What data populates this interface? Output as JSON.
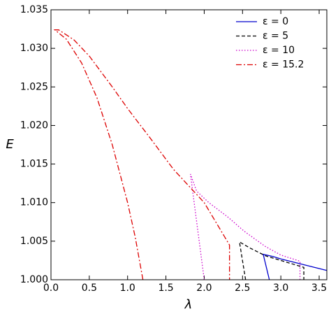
{
  "chart_data": {
    "type": "line",
    "x_label": "λ",
    "y_label": "E",
    "xlim": [
      0,
      3.6
    ],
    "ylim": [
      1.0,
      1.035
    ],
    "xticks": [
      {
        "value": 0,
        "label": "0.0"
      },
      {
        "value": 0.5,
        "label": "0.5"
      },
      {
        "value": 1,
        "label": "1.0"
      },
      {
        "value": 1.5,
        "label": "1.5"
      },
      {
        "value": 2,
        "label": "2.0"
      },
      {
        "value": 2.5,
        "label": "2.5"
      },
      {
        "value": 3,
        "label": "3.0"
      },
      {
        "value": 3.5,
        "label": "3.5"
      }
    ],
    "yticks": [
      {
        "value": 1.0,
        "label": "1.000"
      },
      {
        "value": 1.005,
        "label": "1.005"
      },
      {
        "value": 1.01,
        "label": "1.010"
      },
      {
        "value": 1.015,
        "label": "1.015"
      },
      {
        "value": 1.02,
        "label": "1.020"
      },
      {
        "value": 1.025,
        "label": "1.025"
      },
      {
        "value": 1.03,
        "label": "1.030"
      },
      {
        "value": 1.035,
        "label": "1.035"
      }
    ],
    "legend_position": "upper right",
    "series": [
      {
        "name": "ε = 0",
        "color": "#0000cc",
        "dash": "solid",
        "x": [
          2.85,
          2.77,
          2.9,
          3.0,
          3.2,
          3.4,
          3.6
        ],
        "values": [
          1.0,
          1.0033,
          1.003,
          1.0027,
          1.0022,
          1.0017,
          1.0012
        ]
      },
      {
        "name": "ε = 5",
        "color": "#000000",
        "dash": "dashed",
        "x": [
          2.54,
          2.46,
          2.6,
          2.8,
          3.0,
          3.3,
          3.3
        ],
        "values": [
          1.0,
          1.0049,
          1.0041,
          1.0031,
          1.0025,
          1.0016,
          1.0
        ]
      },
      {
        "name": "ε = 10",
        "color": "#cc00cc",
        "dash": "dotted",
        "x": [
          2.0,
          1.82,
          1.9,
          2.06,
          2.3,
          2.52,
          2.8,
          3.0,
          3.25,
          3.25
        ],
        "values": [
          1.0,
          1.0137,
          1.0115,
          1.01,
          1.0082,
          1.0063,
          1.0043,
          1.0032,
          1.0024,
          1.0
        ]
      },
      {
        "name": "ε = 15.2",
        "color": "#dd0000",
        "dash": "dashdot",
        "x": [
          1.2,
          1.1,
          1.0,
          0.8,
          0.6,
          0.4,
          0.2,
          0.05,
          0.1,
          0.3,
          0.5,
          0.8,
          1.0,
          1.3,
          1.6,
          2.0,
          2.33,
          2.33
        ],
        "values": [
          1.0,
          1.0055,
          1.01,
          1.0175,
          1.0236,
          1.0281,
          1.0312,
          1.0324,
          1.0324,
          1.0311,
          1.029,
          1.025,
          1.0222,
          1.0183,
          1.0143,
          1.01,
          1.0045,
          1.0
        ]
      }
    ]
  }
}
